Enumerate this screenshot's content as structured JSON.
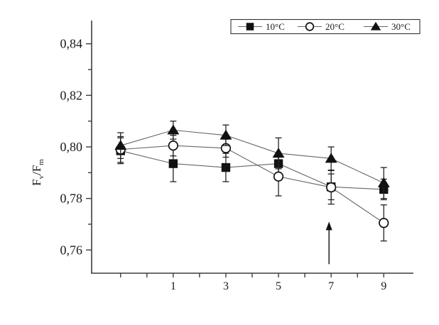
{
  "figure": {
    "description": "Line chart with error bars of chlorophyll fluorescence Fv/Fm over time for three temperatures"
  },
  "chart_data": {
    "type": "line",
    "title": "",
    "xlabel": "",
    "ylabel": "Fv/Fm",
    "ylabel_parts": [
      "F",
      "v",
      "/F",
      "m"
    ],
    "decimal_separator": ",",
    "grid": false,
    "xlim": [
      -2.1,
      10.1
    ],
    "ylim": [
      0.751,
      0.849
    ],
    "y_ticks": [
      {
        "value": 0.76,
        "label": "0,76"
      },
      {
        "value": 0.77
      },
      {
        "value": 0.78,
        "label": "0,78"
      },
      {
        "value": 0.79
      },
      {
        "value": 0.8,
        "label": "0,80"
      },
      {
        "value": 0.81
      },
      {
        "value": 0.82,
        "label": "0,82"
      },
      {
        "value": 0.83
      },
      {
        "value": 0.84,
        "label": "0,84"
      }
    ],
    "x_ticks": [
      {
        "value": -1
      },
      {
        "value": 0
      },
      {
        "value": 1,
        "label": "1"
      },
      {
        "value": 2
      },
      {
        "value": 3,
        "label": "3"
      },
      {
        "value": 4
      },
      {
        "value": 5,
        "label": "5"
      },
      {
        "value": 6
      },
      {
        "value": 7,
        "label": "7"
      },
      {
        "value": 8
      },
      {
        "value": 9,
        "label": "9"
      }
    ],
    "series": [
      {
        "name": "10°C",
        "marker": "filled-square",
        "points": [
          {
            "x": -1,
            "y": 0.7985,
            "err": 0.005
          },
          {
            "x": 1,
            "y": 0.7935,
            "err": 0.007
          },
          {
            "x": 3,
            "y": 0.792,
            "err": 0.0055
          },
          {
            "x": 5,
            "y": 0.7935,
            "err": 0.004
          },
          {
            "x": 7,
            "y": 0.7845,
            "err": 0.005
          },
          {
            "x": 9,
            "y": 0.7835,
            "err": 0.004
          }
        ]
      },
      {
        "name": "20°C",
        "marker": "open-circle",
        "points": [
          {
            "x": -1,
            "y": 0.799,
            "err": 0.005
          },
          {
            "x": 1,
            "y": 0.8005,
            "err": 0.004
          },
          {
            "x": 3,
            "y": 0.7995,
            "err": 0.0035
          },
          {
            "x": 5,
            "y": 0.7885,
            "err": 0.0075
          },
          {
            "x": 7,
            "y": 0.7843,
            "err": 0.0065
          },
          {
            "x": 9,
            "y": 0.7705,
            "err": 0.007
          }
        ]
      },
      {
        "name": "30°C",
        "marker": "filled-triangle",
        "points": [
          {
            "x": -1,
            "y": 0.8005,
            "err": 0.005
          },
          {
            "x": 1,
            "y": 0.8065,
            "err": 0.0035
          },
          {
            "x": 3,
            "y": 0.8045,
            "err": 0.004
          },
          {
            "x": 5,
            "y": 0.7975,
            "err": 0.006
          },
          {
            "x": 7,
            "y": 0.7955,
            "err": 0.0045
          },
          {
            "x": 9,
            "y": 0.786,
            "err": 0.006
          }
        ]
      }
    ],
    "legend": {
      "position": "top-right",
      "entries": [
        {
          "label": "10°C",
          "marker": "filled-square"
        },
        {
          "label": "20°C",
          "marker": "open-circle"
        },
        {
          "label": "30°C",
          "marker": "filled-triangle"
        }
      ]
    },
    "annotations": [
      {
        "type": "arrow-up",
        "x": 6.92,
        "y_tip": 0.771,
        "y_base": 0.7545
      }
    ],
    "colors": {
      "marker": "#111111",
      "series_line": "#666666",
      "axis": "#3d3d3d",
      "error_bar": "#222222",
      "background": "#ffffff",
      "legend_border": "#333333"
    }
  }
}
